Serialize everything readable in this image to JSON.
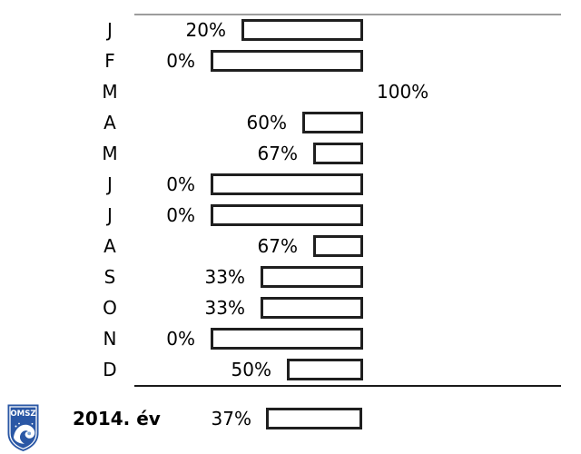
{
  "chart_data": {
    "type": "bar",
    "orientation": "horizontal",
    "anchor": "right-edge",
    "bar_length_rule": "bar length equals 100 minus value percent, anchored at right axis; no bar drawn for 100%",
    "categories": [
      "J",
      "F",
      "M",
      "A",
      "M",
      "J",
      "J",
      "A",
      "S",
      "O",
      "N",
      "D"
    ],
    "values": [
      20,
      0,
      100,
      60,
      67,
      0,
      0,
      67,
      33,
      33,
      0,
      50
    ],
    "labels": [
      "20%",
      "0%",
      "100%",
      "60%",
      "67%",
      "0%",
      "0%",
      "67%",
      "33%",
      "33%",
      "0%",
      "50%"
    ],
    "xlim": [
      0,
      100
    ],
    "grid": "off",
    "legend": "none",
    "summary": {
      "label": "2014. év",
      "value": 37,
      "value_label": "37%"
    }
  },
  "logo": {
    "text": "OMSZ"
  },
  "colors": {
    "background": "#ffffff",
    "bar_fill": "#ffffff",
    "bar_border": "#1f1f1f",
    "top_line": "#9c9c9c",
    "bottom_line": "#1a1a1a",
    "text": "#000000",
    "logo_blue": "#2a57a5",
    "logo_light_blue": "#7ea6d8"
  }
}
